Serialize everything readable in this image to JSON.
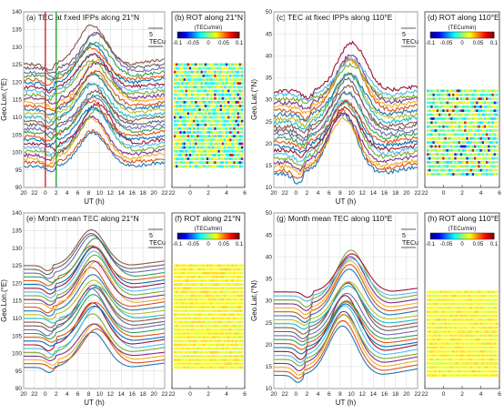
{
  "figure": {
    "xlabel": "UT (h)",
    "xtick_labels": [
      "20",
      "22",
      "0",
      "2",
      "4",
      "6",
      "8",
      "10",
      "12",
      "14",
      "16",
      "18",
      "20",
      "22"
    ],
    "rot_xtick_labels": [
      "22",
      "0",
      "2",
      "4",
      "6"
    ],
    "scale_bar": {
      "value": "5",
      "unit": "TECu"
    },
    "colorbar": {
      "title": "(TECu/min)",
      "ticks": [
        "-0.1",
        "-0.05",
        "0",
        "0.05",
        "0.1"
      ]
    }
  },
  "chart_data": [
    {
      "panel": "a",
      "type": "line",
      "title": "(a) TEC at fixed IPPs along 21°N",
      "ylabel": "Geo.Lon.(°E)",
      "ylim": [
        90,
        140
      ],
      "yticks": [
        "90",
        "95",
        "100",
        "105",
        "110",
        "115",
        "120",
        "125",
        "130",
        "135",
        "140"
      ],
      "xlim": [
        20,
        46
      ],
      "grid": true,
      "series_count": 28,
      "y_base": [
        96,
        125
      ],
      "marker_lines": [
        {
          "x": 24,
          "color": "#d62728"
        },
        {
          "x": 26,
          "color": "#2ca02c"
        }
      ]
    },
    {
      "panel": "b",
      "type": "heatmap",
      "title": "(b) ROT along 21°N",
      "xlim": [
        22,
        30
      ],
      "rows": 28,
      "row_lat_range": [
        96,
        125
      ]
    },
    {
      "panel": "c",
      "type": "line",
      "title": "(c) TEC at fixed IPPs along 110°E",
      "ylabel": "Geo.Lat.(°N)",
      "ylim": [
        10,
        50
      ],
      "yticks": [
        "10",
        "15",
        "20",
        "25",
        "30",
        "35",
        "40",
        "45",
        "50"
      ],
      "xlim": [
        20,
        46
      ],
      "grid": true,
      "series_count": 22,
      "y_base": [
        13,
        32
      ]
    },
    {
      "panel": "d",
      "type": "heatmap",
      "title": "(d) ROT along 110°E",
      "xlim": [
        22,
        30
      ],
      "rows": 22,
      "row_lat_range": [
        13,
        32
      ]
    },
    {
      "panel": "e",
      "type": "line",
      "title": "(e) Month mean TEC along 21°N",
      "ylabel": "Geo.Lon.(°E)",
      "ylim": [
        90,
        140
      ],
      "yticks": [
        "90",
        "95",
        "100",
        "105",
        "110",
        "115",
        "120",
        "125",
        "130",
        "135",
        "140"
      ],
      "xlim": [
        20,
        46
      ],
      "grid": true,
      "series_count": 28,
      "y_base": [
        96,
        125
      ]
    },
    {
      "panel": "f",
      "type": "heatmap",
      "title": "(f) ROT along 21°N",
      "xlim": [
        22,
        30
      ],
      "rows": 28,
      "row_lat_range": [
        96,
        125
      ]
    },
    {
      "panel": "g",
      "type": "line",
      "title": "(g) Month mean TEC along 110°E",
      "ylabel": "Geo.Lat.(°N)",
      "ylim": [
        10,
        50
      ],
      "yticks": [
        "10",
        "15",
        "20",
        "25",
        "30",
        "35",
        "40",
        "45",
        "50"
      ],
      "xlim": [
        20,
        46
      ],
      "grid": true,
      "series_count": 22,
      "y_base": [
        13,
        32
      ]
    },
    {
      "panel": "h",
      "type": "heatmap",
      "title": "(h) ROT along 110°E",
      "xlim": [
        22,
        30
      ],
      "rows": 22,
      "row_lat_range": [
        13,
        32
      ]
    }
  ]
}
